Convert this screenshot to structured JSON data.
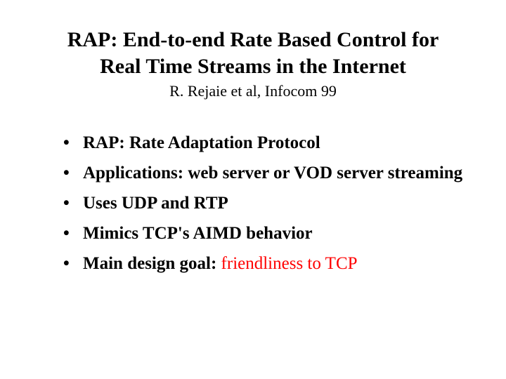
{
  "title": {
    "line1": "RAP: End-to-end Rate Based Control for",
    "line2": "Real Time Streams in the Internet",
    "subtitle": "R. Rejaie et al, Infocom 99"
  },
  "bullets": [
    {
      "text": "RAP: Rate Adaptation Protocol"
    },
    {
      "text": "Applications: web server or VOD server streaming"
    },
    {
      "text": "Uses UDP and RTP"
    },
    {
      "text": "Mimics TCP's AIMD behavior"
    },
    {
      "text": "Main design goal: ",
      "highlight": "friendliness to TCP"
    }
  ],
  "colors": {
    "background": "#ffffff",
    "text": "#000000",
    "highlight": "#ff0000"
  },
  "typography": {
    "title_fontsize": 30,
    "subtitle_fontsize": 22,
    "bullet_fontsize": 25,
    "font_family": "Times New Roman"
  }
}
